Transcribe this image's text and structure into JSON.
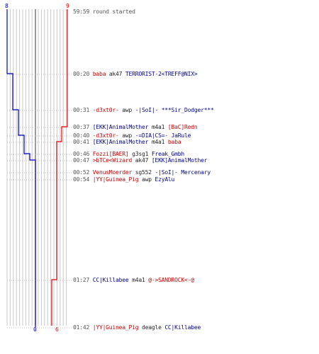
{
  "scoreboard": {
    "ct_start": "8",
    "t_start": "9",
    "ct_end": "0",
    "t_end": "6",
    "ct_color": "#0000cc",
    "t_color": "#ee0000"
  },
  "events": [
    {
      "time": "59:59",
      "message": "round started"
    },
    {
      "time": "00:20",
      "killer": "baba",
      "killer_team": "t",
      "weapon": "ak47",
      "victim": "TERRORIST-2<TREFF@NIX>",
      "victim_team": "ct"
    },
    {
      "time": "00:31",
      "killer": "-d3xt0r-",
      "killer_team": "t",
      "weapon": "awp",
      "victim": "-|SoI|- ***Sir_Dodger***",
      "victim_team": "ct"
    },
    {
      "time": "00:37",
      "killer": "[EKK]AnimalMother",
      "killer_team": "ct",
      "weapon": "m4a1",
      "victim": "[BaC]Redn",
      "victim_team": "t"
    },
    {
      "time": "00:40",
      "killer": "-d3xt0r-",
      "killer_team": "t",
      "weapon": "awp",
      "victim": "-=DIA|CS=- JaRule",
      "victim_team": "ct"
    },
    {
      "time": "00:41",
      "killer": "[EKK]AnimalMother",
      "killer_team": "ct",
      "weapon": "m4a1",
      "victim": "baba",
      "victim_team": "t"
    },
    {
      "time": "00:46",
      "killer": "Fozzi[BAER]",
      "killer_team": "t",
      "weapon": "g3sg1",
      "victim": "Freak_Gmbh",
      "victim_team": "ct"
    },
    {
      "time": "00:47",
      "killer": ">bTCe<Wizard",
      "killer_team": "t",
      "weapon": "ak47",
      "victim": "[EKK]AnimalMother",
      "victim_team": "ct"
    },
    {
      "time": "00:52",
      "killer": "VenusMoerder",
      "killer_team": "t",
      "weapon": "sg552",
      "victim": "-|SoI|- Mercenary",
      "victim_team": "ct"
    },
    {
      "time": "00:54",
      "killer": "|YY|Guinea_Pig",
      "killer_team": "t",
      "weapon": "awp",
      "victim": "EzyAlu",
      "victim_team": "ct"
    },
    {
      "time": "01:27",
      "killer": "CC|Killabee",
      "killer_team": "ct",
      "weapon": "m4a1",
      "victim": "@->SANDROCK<-@",
      "victim_team": "t"
    },
    {
      "time": "01:42",
      "killer": "|YY|Guinea_Pig",
      "killer_team": "t",
      "weapon": "deagle",
      "victim": "CC|Killabee",
      "victim_team": "ct"
    }
  ]
}
